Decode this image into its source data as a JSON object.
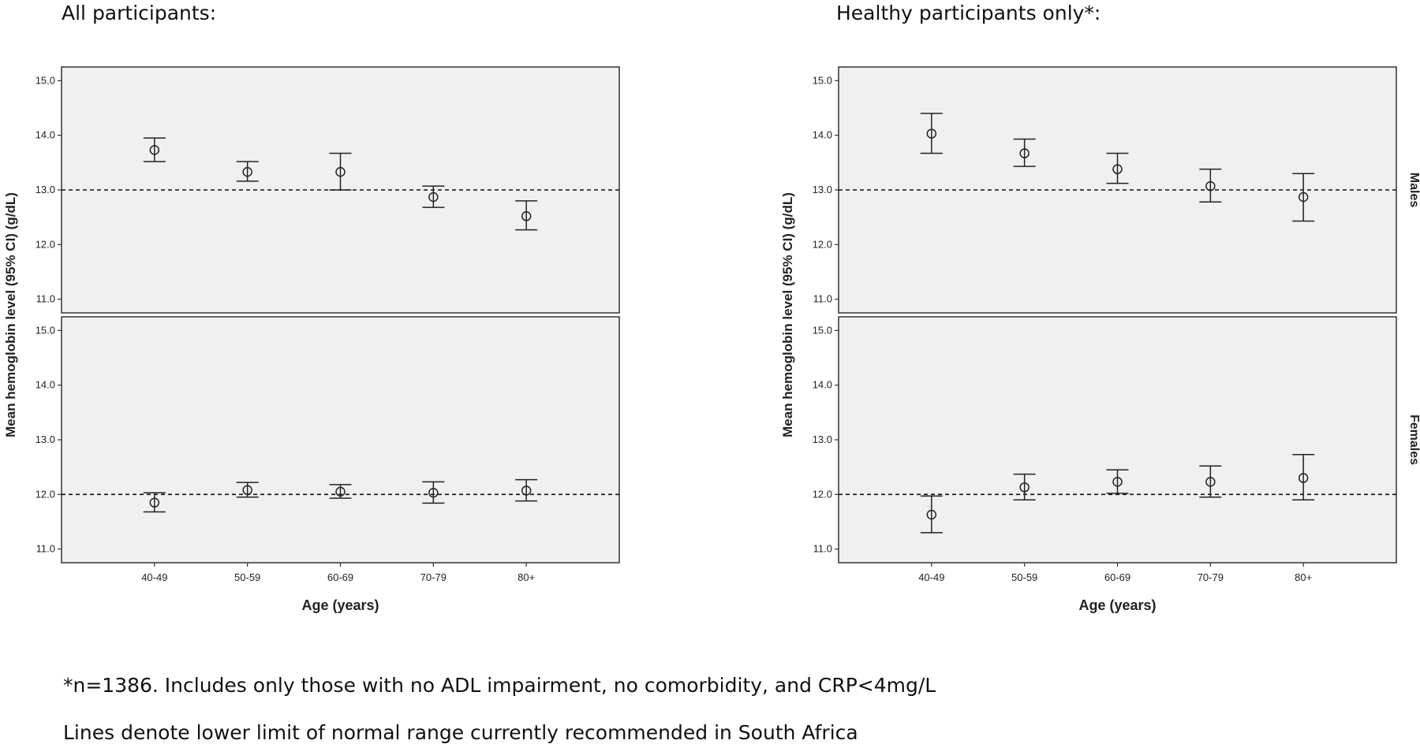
{
  "headings": {
    "left": "All participants:",
    "right": "Healthy participants only*:"
  },
  "footnotes": {
    "line1": "*n=1386. Includes only those with no ADL impairment, no comorbidity, and CRP<4mg/L",
    "line2": "Lines denote lower limit of normal range currently recommended in South Africa"
  },
  "chart_data": [
    {
      "type": "errorbar",
      "title": "All participants:",
      "xlabel": "Age (years)",
      "ylabel": "Mean hemoglobin level (95% CI) (g/dL)",
      "categories": [
        "40-49",
        "50-59",
        "60-69",
        "70-79",
        "80+"
      ],
      "yticks": [
        "11.0",
        "12.0",
        "13.0",
        "14.0",
        "15.0"
      ],
      "ylim": [
        10.75,
        15.25
      ],
      "grid": false,
      "panels": [
        {
          "label": "Males",
          "reference_line": 13.0,
          "mean": [
            13.73,
            13.33,
            13.33,
            12.87,
            12.52
          ],
          "lower": [
            13.52,
            13.16,
            13.0,
            12.68,
            12.27
          ],
          "upper": [
            13.95,
            13.52,
            13.67,
            13.07,
            12.8
          ]
        },
        {
          "label": "Females",
          "reference_line": 12.0,
          "mean": [
            11.85,
            12.08,
            12.05,
            12.03,
            12.07
          ],
          "lower": [
            11.68,
            11.95,
            11.93,
            11.84,
            11.88
          ],
          "upper": [
            12.03,
            12.22,
            12.18,
            12.23,
            12.27
          ]
        }
      ]
    },
    {
      "type": "errorbar",
      "title": "Healthy participants only*:",
      "xlabel": "Age (years)",
      "ylabel": "Mean hemoglobin level (95% CI) (g/dL)",
      "categories": [
        "40-49",
        "50-59",
        "60-69",
        "70-79",
        "80+"
      ],
      "yticks": [
        "11.0",
        "12.0",
        "13.0",
        "14.0",
        "15.0"
      ],
      "ylim": [
        10.75,
        15.25
      ],
      "grid": false,
      "panels": [
        {
          "label": "Males",
          "reference_line": 13.0,
          "mean": [
            14.03,
            13.67,
            13.38,
            13.07,
            12.87
          ],
          "lower": [
            13.67,
            13.43,
            13.12,
            12.78,
            12.43
          ],
          "upper": [
            14.4,
            13.93,
            13.67,
            13.38,
            13.3
          ]
        },
        {
          "label": "Females",
          "reference_line": 12.0,
          "mean": [
            11.63,
            12.13,
            12.23,
            12.23,
            12.3
          ],
          "lower": [
            11.3,
            11.9,
            12.02,
            11.95,
            11.9
          ],
          "upper": [
            11.97,
            12.37,
            12.45,
            12.52,
            12.73
          ]
        }
      ]
    }
  ]
}
